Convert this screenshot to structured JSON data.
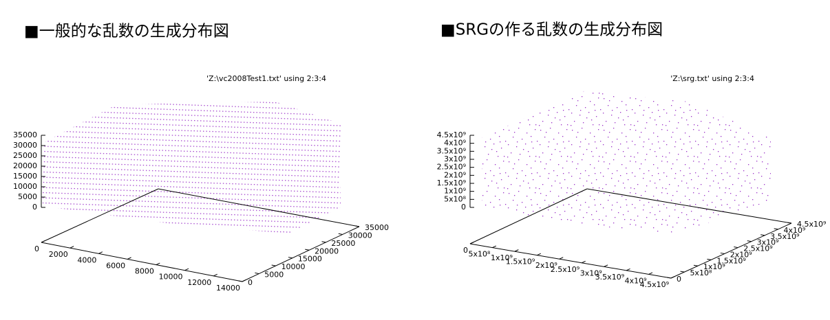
{
  "chart_data": [
    {
      "type": "scatter3d",
      "title": "■一般的な乱数の生成分布図",
      "key": "'Z:\\vc2008Test1.txt' using 2:3:4",
      "color": "#9a30c8",
      "xlim": [
        0,
        14000
      ],
      "xticks": [
        0,
        2000,
        4000,
        6000,
        8000,
        10000,
        12000,
        14000
      ],
      "ylim": [
        0,
        35000
      ],
      "yticks": [
        0,
        5000,
        10000,
        15000,
        20000,
        25000,
        30000,
        35000
      ],
      "zlim": [
        0,
        35000
      ],
      "zticks": [
        0,
        5000,
        10000,
        15000,
        20000,
        25000,
        30000,
        35000
      ]
    },
    {
      "type": "scatter3d",
      "title": "■SRGの作る乱数の生成分布図",
      "key": "'Z:\\srg.txt' using 2:3:4",
      "color": "#9a30c8",
      "xlim": [
        0,
        4500000000
      ],
      "xticks": [
        0,
        {
          "value": 500000000,
          "label": "5x10⁸"
        },
        {
          "value": 1000000000,
          "label": "1x10⁹"
        },
        {
          "value": 1500000000,
          "label": "1.5x10⁹"
        },
        {
          "value": 2000000000,
          "label": "2x10⁹"
        },
        {
          "value": 2500000000,
          "label": "2.5x10⁹"
        },
        {
          "value": 3000000000,
          "label": "3x10⁹"
        },
        {
          "value": 3500000000,
          "label": "3.5x10⁹"
        },
        {
          "value": 4000000000,
          "label": "4x10⁹"
        },
        {
          "value": 4500000000,
          "label": "4.5x10⁹"
        }
      ],
      "ylim": [
        0,
        4500000000
      ],
      "yticks": [
        0,
        {
          "value": 500000000,
          "label": "5x10⁸"
        },
        {
          "value": 1000000000,
          "label": "1x10⁹"
        },
        {
          "value": 1500000000,
          "label": "1.5x10⁹"
        },
        {
          "value": 2000000000,
          "label": "2x10⁹"
        },
        {
          "value": 2500000000,
          "label": "2.5x10⁹"
        },
        {
          "value": 3000000000,
          "label": "3x10⁹"
        },
        {
          "value": 3500000000,
          "label": "3.5x10⁹"
        },
        {
          "value": 4000000000,
          "label": "4x10⁹"
        },
        {
          "value": 4500000000,
          "label": "4.5x10⁹"
        }
      ],
      "zlim": [
        0,
        4500000000
      ],
      "zticks": [
        0,
        {
          "value": 500000000,
          "label": "5x10⁸"
        },
        {
          "value": 1000000000,
          "label": "1x10⁹"
        },
        {
          "value": 1500000000,
          "label": "1.5x10⁹"
        },
        {
          "value": 2000000000,
          "label": "2x10⁹"
        },
        {
          "value": 2500000000,
          "label": "2.5x10⁹"
        },
        {
          "value": 3000000000,
          "label": "3x10⁹"
        },
        {
          "value": 3500000000,
          "label": "3.5x10⁹"
        },
        {
          "value": 4000000000,
          "label": "4x10⁹"
        },
        {
          "value": 4500000000,
          "label": "4.5x10⁹"
        }
      ]
    }
  ]
}
